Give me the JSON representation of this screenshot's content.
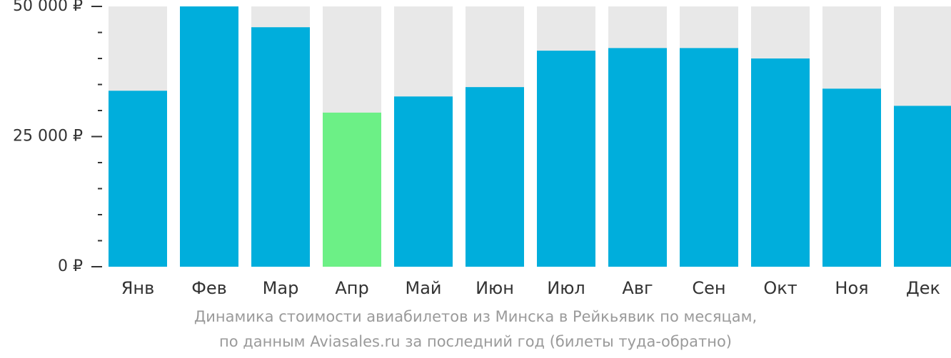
{
  "chart_data": {
    "type": "bar",
    "title": "",
    "xlabel": "",
    "ylabel": "",
    "ylim": [
      0,
      50000
    ],
    "categories": [
      "Янв",
      "Фев",
      "Мар",
      "Апр",
      "Май",
      "Июн",
      "Июл",
      "Авг",
      "Сен",
      "Окт",
      "Ноя",
      "Дек"
    ],
    "values": [
      33800,
      50000,
      46000,
      29600,
      32700,
      34500,
      41500,
      42000,
      42000,
      40000,
      34200,
      30900
    ],
    "highlight_index": 3,
    "y_ticks": [
      {
        "value": 0,
        "label": "0 ₽"
      },
      {
        "value": 25000,
        "label": "25 000 ₽"
      },
      {
        "value": 50000,
        "label": "50 000 ₽"
      }
    ],
    "minor_tick_step": 5000,
    "grid": false,
    "legend": "none"
  },
  "caption": {
    "line1": "Динамика стоимости авиабилетов из Минска в Рейкьявик по месяцам,",
    "line2": "по данным Aviasales.ru за последний год (билеты туда-обратно)"
  },
  "colors": {
    "bar": "#00AEDC",
    "highlight": "#6CF086",
    "background_bar": "#E8E8E8",
    "axis": "#333333",
    "caption": "#9A9A9A"
  }
}
